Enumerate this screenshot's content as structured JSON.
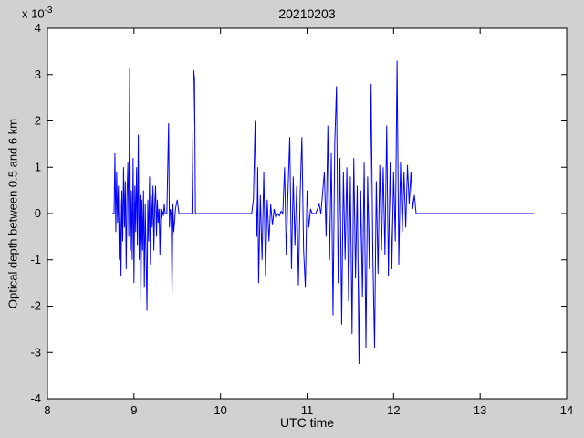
{
  "figure": {
    "background": "#d1d1d1",
    "plot_background": "#ffffff",
    "axis_color": "#000000",
    "line_color": "#0000ff"
  },
  "chart_data": {
    "type": "line",
    "title": "20210203",
    "xlabel": "UTC time",
    "ylabel": "Optical depth between 0.5 and 6 km",
    "y_scale_label": {
      "prefix": "x 10",
      "exponent": "-3"
    },
    "xlim": [
      8,
      14
    ],
    "ylim": [
      -4,
      4
    ],
    "xticks": [
      8,
      9,
      10,
      11,
      12,
      13,
      14
    ],
    "yticks": [
      -4,
      -3,
      -2,
      -1,
      0,
      1,
      2,
      3,
      4
    ],
    "grid": false,
    "legend_position": "none",
    "y_multiplier": 0.001,
    "series": [
      {
        "name": "optical depth",
        "color": "#0000ff",
        "points": [
          [
            8.75,
            0
          ],
          [
            8.77,
            0
          ],
          [
            8.78,
            1.3
          ],
          [
            8.79,
            -0.4
          ],
          [
            8.8,
            0.9
          ],
          [
            8.81,
            -0.2
          ],
          [
            8.82,
            0.6
          ],
          [
            8.83,
            -1.0
          ],
          [
            8.84,
            0.3
          ],
          [
            8.85,
            -1.35
          ],
          [
            8.86,
            0.5
          ],
          [
            8.87,
            -0.6
          ],
          [
            8.88,
            1.0
          ],
          [
            8.89,
            -0.3
          ],
          [
            8.9,
            0.7
          ],
          [
            8.91,
            -1.2
          ],
          [
            8.92,
            0.4
          ],
          [
            8.93,
            1.1
          ],
          [
            8.94,
            -0.5
          ],
          [
            8.95,
            3.15
          ],
          [
            8.96,
            -0.8
          ],
          [
            8.97,
            0.5
          ],
          [
            8.98,
            -1.0
          ],
          [
            8.99,
            1.2
          ],
          [
            9.0,
            -1.5
          ],
          [
            9.01,
            0.6
          ],
          [
            9.02,
            -0.4
          ],
          [
            9.03,
            1.0
          ],
          [
            9.04,
            -0.7
          ],
          [
            9.05,
            1.7
          ],
          [
            9.06,
            -1.0
          ],
          [
            9.07,
            0.4
          ],
          [
            9.08,
            -1.9
          ],
          [
            9.09,
            0.3
          ],
          [
            9.1,
            -0.8
          ],
          [
            9.11,
            0.5
          ],
          [
            9.12,
            -1.6
          ],
          [
            9.13,
            0.2
          ],
          [
            9.14,
            -0.9
          ],
          [
            9.15,
            -2.1
          ],
          [
            9.16,
            0.3
          ],
          [
            9.17,
            -0.6
          ],
          [
            9.18,
            0.8
          ],
          [
            9.19,
            -1.1
          ],
          [
            9.2,
            0.4
          ],
          [
            9.21,
            -0.3
          ],
          [
            9.22,
            0.6
          ],
          [
            9.23,
            -0.8
          ],
          [
            9.24,
            0.2
          ],
          [
            9.25,
            0.6
          ],
          [
            9.26,
            -0.5
          ],
          [
            9.27,
            0.3
          ],
          [
            9.28,
            -0.2
          ],
          [
            9.29,
            0.1
          ],
          [
            9.3,
            -0.9
          ],
          [
            9.31,
            0.1
          ],
          [
            9.32,
            -0.1
          ],
          [
            9.33,
            0.05
          ],
          [
            9.34,
            -0.05
          ],
          [
            9.35,
            0.2
          ],
          [
            9.36,
            0
          ],
          [
            9.38,
            0
          ],
          [
            9.4,
            1.95
          ],
          [
            9.41,
            -0.3
          ],
          [
            9.42,
            0.1
          ],
          [
            9.43,
            0
          ],
          [
            9.44,
            -1.75
          ],
          [
            9.45,
            0.2
          ],
          [
            9.46,
            -0.4
          ],
          [
            9.48,
            0.1
          ],
          [
            9.5,
            0.3
          ],
          [
            9.52,
            0
          ],
          [
            9.55,
            0
          ],
          [
            9.67,
            0
          ],
          [
            9.69,
            3.1
          ],
          [
            9.7,
            2.9
          ],
          [
            9.71,
            0
          ],
          [
            9.75,
            0
          ],
          [
            10.36,
            0
          ],
          [
            10.38,
            0.3
          ],
          [
            10.4,
            2.0
          ],
          [
            10.41,
            0.2
          ],
          [
            10.42,
            -0.5
          ],
          [
            10.43,
            1.0
          ],
          [
            10.44,
            -1.5
          ],
          [
            10.46,
            0.4
          ],
          [
            10.48,
            -1.0
          ],
          [
            10.5,
            0.9
          ],
          [
            10.52,
            -1.35
          ],
          [
            10.54,
            0.3
          ],
          [
            10.56,
            -0.6
          ],
          [
            10.58,
            0.2
          ],
          [
            10.6,
            -0.25
          ],
          [
            10.62,
            0.1
          ],
          [
            10.64,
            -0.1
          ],
          [
            10.66,
            0
          ],
          [
            10.68,
            -0.05
          ],
          [
            10.7,
            0.05
          ],
          [
            10.72,
            0
          ],
          [
            10.74,
            1.0
          ],
          [
            10.76,
            -0.9
          ],
          [
            10.78,
            0.5
          ],
          [
            10.8,
            1.65
          ],
          [
            10.82,
            -1.2
          ],
          [
            10.84,
            0.8
          ],
          [
            10.86,
            -0.7
          ],
          [
            10.88,
            0.6
          ],
          [
            10.9,
            -1.55
          ],
          [
            10.92,
            0.4
          ],
          [
            10.94,
            1.65
          ],
          [
            10.96,
            -0.8
          ],
          [
            10.98,
            -1.6
          ],
          [
            11.0,
            0.5
          ],
          [
            11.02,
            -0.3
          ],
          [
            11.04,
            0.1
          ],
          [
            11.06,
            0
          ],
          [
            11.1,
            0
          ],
          [
            11.14,
            0.2
          ],
          [
            11.16,
            0
          ],
          [
            11.2,
            0.9
          ],
          [
            11.22,
            -0.5
          ],
          [
            11.24,
            1.9
          ],
          [
            11.26,
            -1.0
          ],
          [
            11.28,
            1.3
          ],
          [
            11.3,
            -2.2
          ],
          [
            11.32,
            1.5
          ],
          [
            11.34,
            2.75
          ],
          [
            11.36,
            -1.5
          ],
          [
            11.38,
            1.2
          ],
          [
            11.4,
            -2.4
          ],
          [
            11.42,
            0.9
          ],
          [
            11.44,
            -1.0
          ],
          [
            11.46,
            1.0
          ],
          [
            11.48,
            -1.9
          ],
          [
            11.5,
            0.8
          ],
          [
            11.52,
            -2.6
          ],
          [
            11.54,
            1.2
          ],
          [
            11.56,
            -1.4
          ],
          [
            11.58,
            0.6
          ],
          [
            11.6,
            -3.25
          ],
          [
            11.62,
            0.5
          ],
          [
            11.64,
            -1.8
          ],
          [
            11.66,
            1.1
          ],
          [
            11.68,
            -2.9
          ],
          [
            11.7,
            0.8
          ],
          [
            11.72,
            -1.2
          ],
          [
            11.74,
            2.8
          ],
          [
            11.76,
            -0.9
          ],
          [
            11.78,
            -2.9
          ],
          [
            11.8,
            0.7
          ],
          [
            11.82,
            -1.3
          ],
          [
            11.84,
            1.05
          ],
          [
            11.86,
            -0.8
          ],
          [
            11.88,
            1.0
          ],
          [
            11.9,
            -0.9
          ],
          [
            11.92,
            1.9
          ],
          [
            11.94,
            -1.35
          ],
          [
            11.96,
            1.1
          ],
          [
            11.98,
            -1.2
          ],
          [
            12.0,
            0.9
          ],
          [
            12.02,
            -0.6
          ],
          [
            12.04,
            3.3
          ],
          [
            12.06,
            -1.1
          ],
          [
            12.08,
            1.1
          ],
          [
            12.1,
            -0.4
          ],
          [
            12.12,
            0.9
          ],
          [
            12.14,
            -0.3
          ],
          [
            12.16,
            1.05
          ],
          [
            12.18,
            0.2
          ],
          [
            12.2,
            0.9
          ],
          [
            12.22,
            0.1
          ],
          [
            12.24,
            0.4
          ],
          [
            12.26,
            0
          ],
          [
            12.3,
            0
          ],
          [
            13.62,
            0
          ]
        ]
      }
    ]
  }
}
